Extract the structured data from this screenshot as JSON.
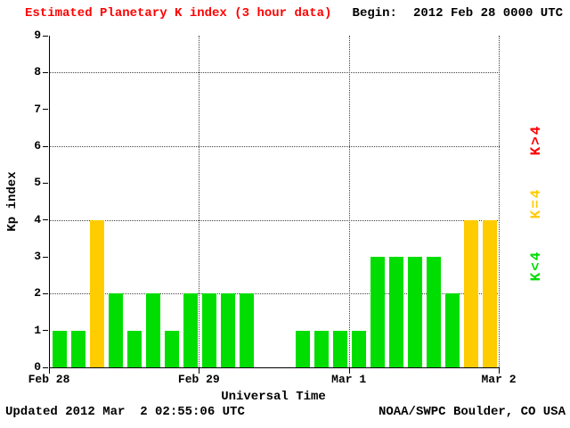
{
  "header": {
    "title": "Estimated Planetary K index (3 hour data)",
    "begin_label": "Begin:",
    "begin_value": "2012 Feb 28 0000 UTC"
  },
  "footer": {
    "updated": "Updated 2012 Mar  2 02:55:06 UTC",
    "source": "NOAA/SWPC Boulder, CO USA"
  },
  "legend": [
    {
      "label": "K>4",
      "color": "#ff0000"
    },
    {
      "label": "K=4",
      "color": "#ffcc00"
    },
    {
      "label": "K<4",
      "color": "#00dd00"
    }
  ],
  "colors": {
    "title": "#ff0000",
    "bar_below_4": "#00dd00",
    "bar_equal_4": "#ffcc00",
    "bar_above_4": "#ff0000",
    "axis": "#000000",
    "background": "#ffffff"
  },
  "chart_data": {
    "type": "bar",
    "title": "Estimated Planetary K index (3 hour data)",
    "xlabel": "Universal Time",
    "ylabel": "Kp index",
    "ylim": [
      0,
      9
    ],
    "y_ticks": [
      0,
      1,
      2,
      3,
      4,
      5,
      6,
      7,
      8,
      9
    ],
    "h_gridlines_at": [
      2,
      4,
      6,
      8
    ],
    "x_tick_labels": [
      "Feb 28",
      "Feb 29",
      "Mar 1",
      "Mar 2"
    ],
    "interval_hours": 3,
    "grid": true,
    "legend_position": "right",
    "series": [
      {
        "day": "Feb 28",
        "values": [
          1,
          1,
          4,
          2,
          1,
          2,
          1,
          2
        ]
      },
      {
        "day": "Feb 29",
        "values": [
          2,
          2,
          2,
          null,
          null,
          1,
          1,
          1
        ]
      },
      {
        "day": "Mar 1",
        "values": [
          1,
          3,
          3,
          3,
          3,
          2,
          4,
          4
        ]
      }
    ],
    "color_rules": {
      "below_4": "#00dd00",
      "equal_4": "#ffcc00",
      "above_4": "#ff0000"
    }
  }
}
